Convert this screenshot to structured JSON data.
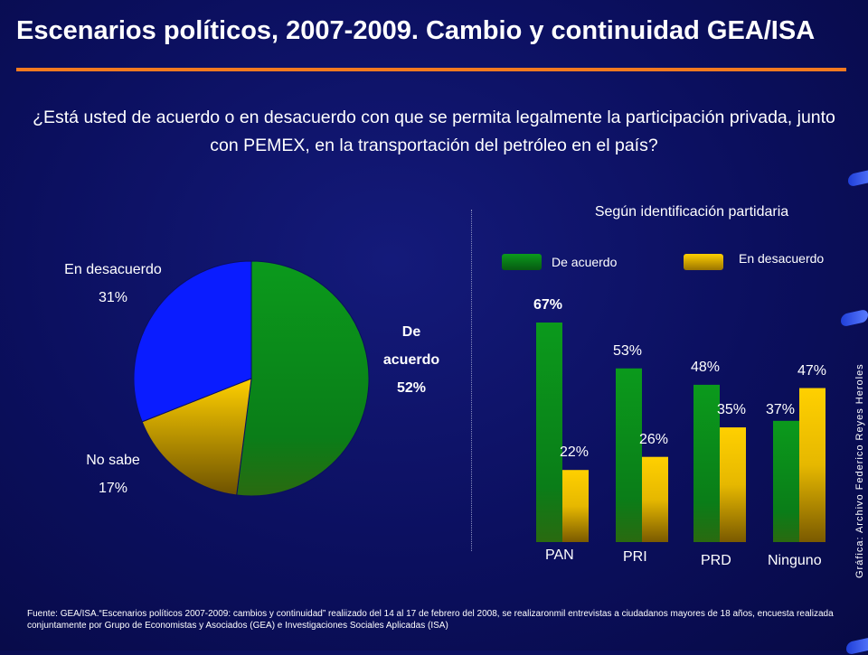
{
  "title": "Escenarios políticos, 2007-2009. Cambio y continuidad GEA/ISA",
  "question": "¿Está usted de acuerdo o en desacuerdo con que se permita legalmente la participación privada, junto con PEMEX, en la transportación del petróleo en el país?",
  "pie_labels": {
    "de_acuerdo_line1": "De",
    "de_acuerdo_line2": "acuerdo",
    "de_acuerdo_pct": "52%",
    "desacuerdo_name": "En desacuerdo",
    "desacuerdo_pct": "31%",
    "no_sabe_name": "No sabe",
    "no_sabe_pct": "17%"
  },
  "bar_section": {
    "subtitle": "Según identificación partidaria",
    "legend_acuerdo": "De acuerdo",
    "legend_desacuerdo": "En desacuerdo"
  },
  "credit": "Gráfica: Archivo Federico Reyes Heroles",
  "source": "Fuente: GEA/ISA.“Escenarios políticos 2007-2009: cambios y continuidad” realiizado del 14 al 17 de febrero del 2008, se realizaronmil entrevistas a ciudadanos mayores de 18 años, encuesta realizada conjuntamente por Grupo de Economistas y Asociados (GEA) e Investigaciones Sociales Aplicadas (ISA)",
  "colors": {
    "background": "#0b0f5e",
    "accent_rule": "#f47a20",
    "acuerdo": "#0a8a1a",
    "desacuerdo": "#f2c400",
    "no_sabe": "#d8b400",
    "pie_desacuerdo": "#0a1cff"
  },
  "chart_data": [
    {
      "type": "pie",
      "slices": [
        {
          "label": "De acuerdo",
          "value": 52,
          "color": "#0a8a1a"
        },
        {
          "label": "No sabe",
          "value": 17,
          "color": "#e0b800"
        },
        {
          "label": "En desacuerdo",
          "value": 31,
          "color": "#0a1cff"
        }
      ]
    },
    {
      "type": "bar",
      "title": "Según identificación partidaria",
      "categories": [
        "PAN",
        "PRI",
        "PRD",
        "Ninguno"
      ],
      "series": [
        {
          "name": "De acuerdo",
          "values": [
            67,
            53,
            48,
            37
          ],
          "color": "#0a8a1a"
        },
        {
          "name": "En desacuerdo",
          "values": [
            22,
            26,
            35,
            47
          ],
          "color": "#f2c400"
        }
      ],
      "value_labels": {
        "De acuerdo": [
          "67%",
          "53%",
          "48%",
          "37%"
        ],
        "En desacuerdo": [
          "22%",
          "26%",
          "35%",
          "47%"
        ]
      },
      "ylim": [
        0,
        70
      ],
      "legend": "top"
    }
  ]
}
